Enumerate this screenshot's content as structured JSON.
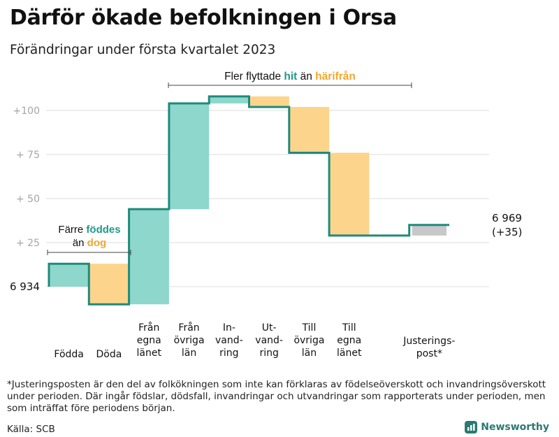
{
  "header": {
    "title": "Därför ökade befolkningen i Orsa",
    "subtitle": "Förändringar under första kvartalet 2023"
  },
  "chart_data": {
    "type": "waterfall",
    "start_label": "6 934",
    "end_label_lines": [
      "6 969",
      "(+35)"
    ],
    "ylim": [
      -10,
      112
    ],
    "y_ticks": [
      {
        "value": 25,
        "label": "+ 25"
      },
      {
        "value": 50,
        "label": "+ 50"
      },
      {
        "value": 75,
        "label": "+ 75"
      },
      {
        "value": 100,
        "label": "+100"
      }
    ],
    "steps": [
      {
        "name": "fodda",
        "label_lines": [
          "Födda"
        ],
        "start": 0,
        "end": 13,
        "kind": "gain"
      },
      {
        "name": "doda",
        "label_lines": [
          "Döda"
        ],
        "start": 13,
        "end": -10,
        "kind": "loss"
      },
      {
        "name": "fran-egna-lanet",
        "label_lines": [
          "Från",
          "egna",
          "länet"
        ],
        "start": -10,
        "end": 44,
        "kind": "gain"
      },
      {
        "name": "fran-ovriga-lan",
        "label_lines": [
          "Från",
          "övriga",
          "län"
        ],
        "start": 44,
        "end": 104,
        "kind": "gain"
      },
      {
        "name": "invandring",
        "label_lines": [
          "In-",
          "vand-",
          "ring"
        ],
        "start": 104,
        "end": 108,
        "kind": "gain"
      },
      {
        "name": "utvandring",
        "label_lines": [
          "Ut-",
          "vand-",
          "ring"
        ],
        "start": 108,
        "end": 102,
        "kind": "loss"
      },
      {
        "name": "till-ovriga-lan",
        "label_lines": [
          "Till",
          "övriga",
          "län"
        ],
        "start": 102,
        "end": 76,
        "kind": "loss"
      },
      {
        "name": "till-egna-lanet",
        "label_lines": [
          "Till",
          "egna",
          "länet"
        ],
        "start": 76,
        "end": 29,
        "kind": "loss"
      },
      {
        "name": "gap",
        "label_lines": [],
        "start": 29,
        "end": 29,
        "kind": "none"
      },
      {
        "name": "justeringspost",
        "label_lines": [
          "Justerings-",
          "post*"
        ],
        "start": 29,
        "end": 35,
        "kind": "adjust"
      }
    ],
    "annotations": {
      "births": {
        "pre": "Färre ",
        "highlight1": "föddes",
        "mid": "än ",
        "highlight2": "dog"
      },
      "migration": {
        "pre": "Fler flyttade ",
        "highlight1": "hit",
        "mid": " än ",
        "highlight2": "härifrån"
      }
    },
    "colors": {
      "line": "#1f8a7c",
      "gain": "#8dd7cc",
      "loss": "#fcd48c",
      "adjust": "#c8c8c8",
      "grid": "#dddddd",
      "tick": "#a5a5a5",
      "teal_text": "#1f9a8a",
      "orange_text": "#f0a830"
    }
  },
  "footnote": "*Justeringsposten är den del av folkökningen som inte kan förklaras av födelseöverskott och invandringsöverskott under perioden. Där ingår födslar, dödsfall, invandringar och utvandringar som rapporterats under perioden, men som inträffat före periodens början.",
  "source": "Källa: SCB",
  "brand": {
    "name": "Newsworthy"
  }
}
